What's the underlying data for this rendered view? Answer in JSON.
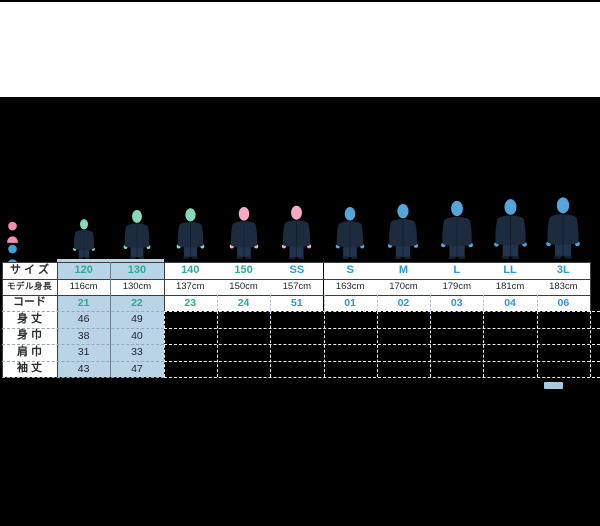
{
  "widget": "size-chart",
  "colors": {
    "background": "#000000",
    "top_band": "#ffffff",
    "highlight_bg": "#b8d4e6",
    "kids_text": "#2aab97",
    "adult_text": "#2b97d8",
    "value_text": "#1f2328",
    "head_green": "#87d8b8",
    "head_pink": "#f4a9c5",
    "head_blue": "#55a4da",
    "jacket": "#1d2b3f",
    "pants": "#21354f",
    "scrollbar_thumb": "#a9c9de",
    "legend_female": "#f48fb1",
    "legend_male": "#42a0dc"
  },
  "icons": {
    "female_legend": "female-person-icon",
    "male_legend": "male-person-icon"
  },
  "table": {
    "row_labels": {
      "size": "サ イ ズ",
      "model_height": "モデル身長",
      "code": "コード",
      "body_length": "身 丈",
      "body_width": "身 巾",
      "shoulder_width": "肩 巾",
      "sleeve_length": "袖 丈"
    },
    "measurement_keys": [
      "body_length",
      "body_width",
      "shoulder_width",
      "sleeve_length"
    ],
    "columns": [
      {
        "size": "120",
        "model_height": "116cm",
        "code": "21",
        "group": "kids",
        "highlighted": true,
        "head": "green",
        "figure_height": 42,
        "measurements": {
          "body_length": "46",
          "body_width": "38",
          "shoulder_width": "31",
          "sleeve_length": "43"
        }
      },
      {
        "size": "130",
        "model_height": "130cm",
        "code": "22",
        "group": "kids",
        "highlighted": true,
        "head": "green",
        "figure_height": 51,
        "measurements": {
          "body_length": "49",
          "body_width": "40",
          "shoulder_width": "33",
          "sleeve_length": "47"
        }
      },
      {
        "size": "140",
        "model_height": "137cm",
        "code": "23",
        "group": "kids",
        "highlighted": false,
        "head": "green",
        "figure_height": 53,
        "measurements": null
      },
      {
        "size": "150",
        "model_height": "150cm",
        "code": "24",
        "group": "kids",
        "highlighted": false,
        "head": "pink",
        "figure_height": 54,
        "measurements": null
      },
      {
        "size": "SS",
        "model_height": "157cm",
        "code": "51",
        "group": "adult",
        "highlighted": false,
        "head": "pink",
        "figure_height": 55,
        "measurements": null
      },
      {
        "size": "S",
        "model_height": "163cm",
        "code": "01",
        "group": "adult",
        "highlighted": false,
        "head": "blue",
        "figure_height": 54,
        "measurements": null
      },
      {
        "size": "M",
        "model_height": "170cm",
        "code": "02",
        "group": "adult",
        "highlighted": false,
        "head": "blue",
        "figure_height": 57,
        "measurements": null
      },
      {
        "size": "L",
        "model_height": "179cm",
        "code": "03",
        "group": "adult",
        "highlighted": false,
        "head": "blue",
        "figure_height": 60,
        "measurements": null
      },
      {
        "size": "LL",
        "model_height": "181cm",
        "code": "04",
        "group": "adult",
        "highlighted": false,
        "head": "blue",
        "figure_height": 62,
        "measurements": null
      },
      {
        "size": "3L",
        "model_height": "183cm",
        "code": "06",
        "group": "adult",
        "highlighted": false,
        "head": "blue",
        "figure_height": 64,
        "measurements": null
      }
    ]
  }
}
